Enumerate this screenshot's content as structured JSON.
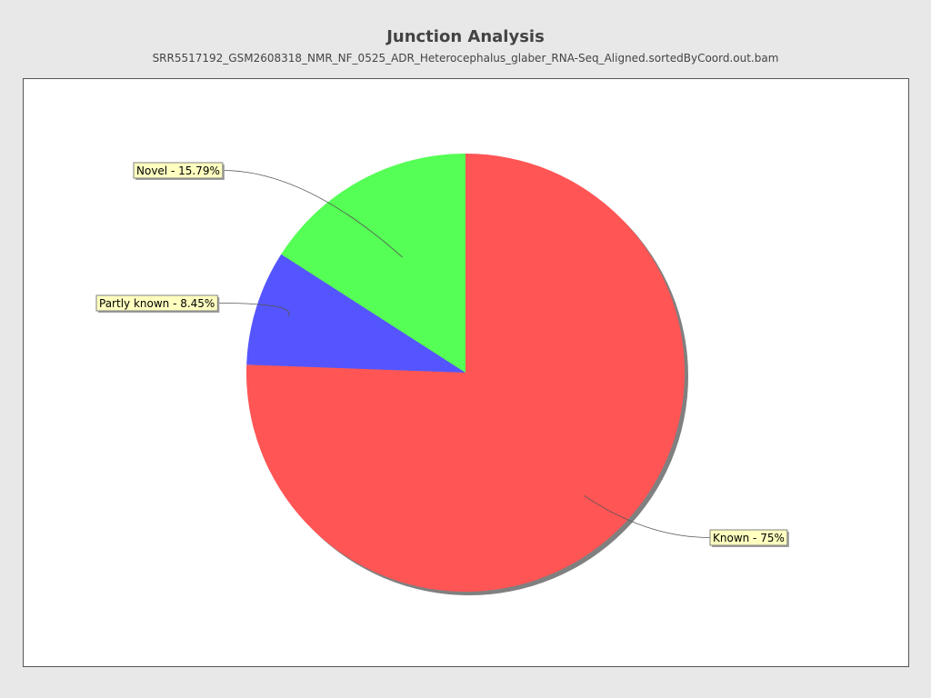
{
  "chart_data": {
    "type": "pie",
    "title": "Junction Analysis",
    "subtitle": "SRR5517192_GSM2608318_NMR_NF_0525_ADR_Heterocephalus_glaber_RNA-Seq_Aligned.sortedByCoord.out.bam",
    "slices": [
      {
        "key": "known",
        "label": "Known - 75%",
        "value": 75,
        "color": "#ff5555"
      },
      {
        "key": "partly_known",
        "label": "Partly known - 8.45%",
        "value": 8.45,
        "color": "#5555ff"
      },
      {
        "key": "novel",
        "label": "Novel - 15.79%",
        "value": 15.79,
        "color": "#55ff55"
      }
    ],
    "legend": "none"
  }
}
